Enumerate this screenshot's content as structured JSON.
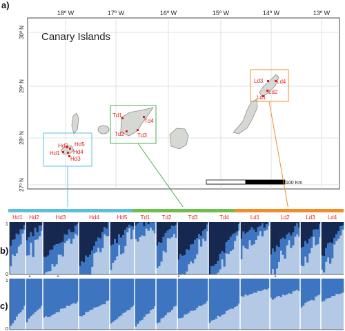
{
  "panel_labels": {
    "a": "a)",
    "b": "b)",
    "c": "c)"
  },
  "map": {
    "title": "Canary Islands",
    "lon_ticks": [
      "18º W",
      "17º W",
      "16º W",
      "15º W",
      "14º W",
      "13º W"
    ],
    "lat_ticks": [
      "30º N",
      "29º N",
      "28º N",
      "27º N"
    ],
    "scale_label": "100 Km",
    "colors": {
      "land": "#d6d8d4",
      "land_edge": "#8a8c88",
      "site": "#e0231c",
      "hierro_box": "#5bc0de",
      "tenerife_box": "#4caf50",
      "lanzarote_box": "#f28c28"
    },
    "sites": {
      "hierro": [
        "Hd2",
        "Hd5",
        "Hd1",
        "Hd4",
        "Hd3"
      ],
      "tenerife": [
        "Td1",
        "Td4",
        "Td2",
        "Td3"
      ],
      "lanzarote": [
        "Ld3",
        "Ld4",
        "Ld2",
        "Ld1"
      ]
    }
  },
  "structure": {
    "colors": {
      "light": "#b3c9e6",
      "mid": "#3e75c0",
      "dark": "#16284f",
      "hierro_bar": "#5bc0de",
      "tenerife_bar": "#6cc04a",
      "lanzarote_bar": "#f28c28"
    },
    "populations": [
      "Hd1",
      "Hd2",
      "Hd3",
      "Hd4",
      "Hd5",
      "Td1",
      "Td2",
      "Td3",
      "Td4",
      "Ld1",
      "Ld2",
      "Ld3",
      "Ld4"
    ],
    "pop_colors": [
      "#e0231c",
      "#e0231c",
      "#e0231c",
      "#e0231c",
      "#e0231c",
      "#e0231c",
      "#e0231c",
      "#e0231c",
      "#e0231c",
      "#e0231c",
      "#e0231c",
      "#e0231c",
      "#e0231c"
    ],
    "y_ticks_b": [
      "1",
      "0"
    ],
    "y_ticks_c": [
      "1",
      "0"
    ],
    "asterisk": "*"
  }
}
